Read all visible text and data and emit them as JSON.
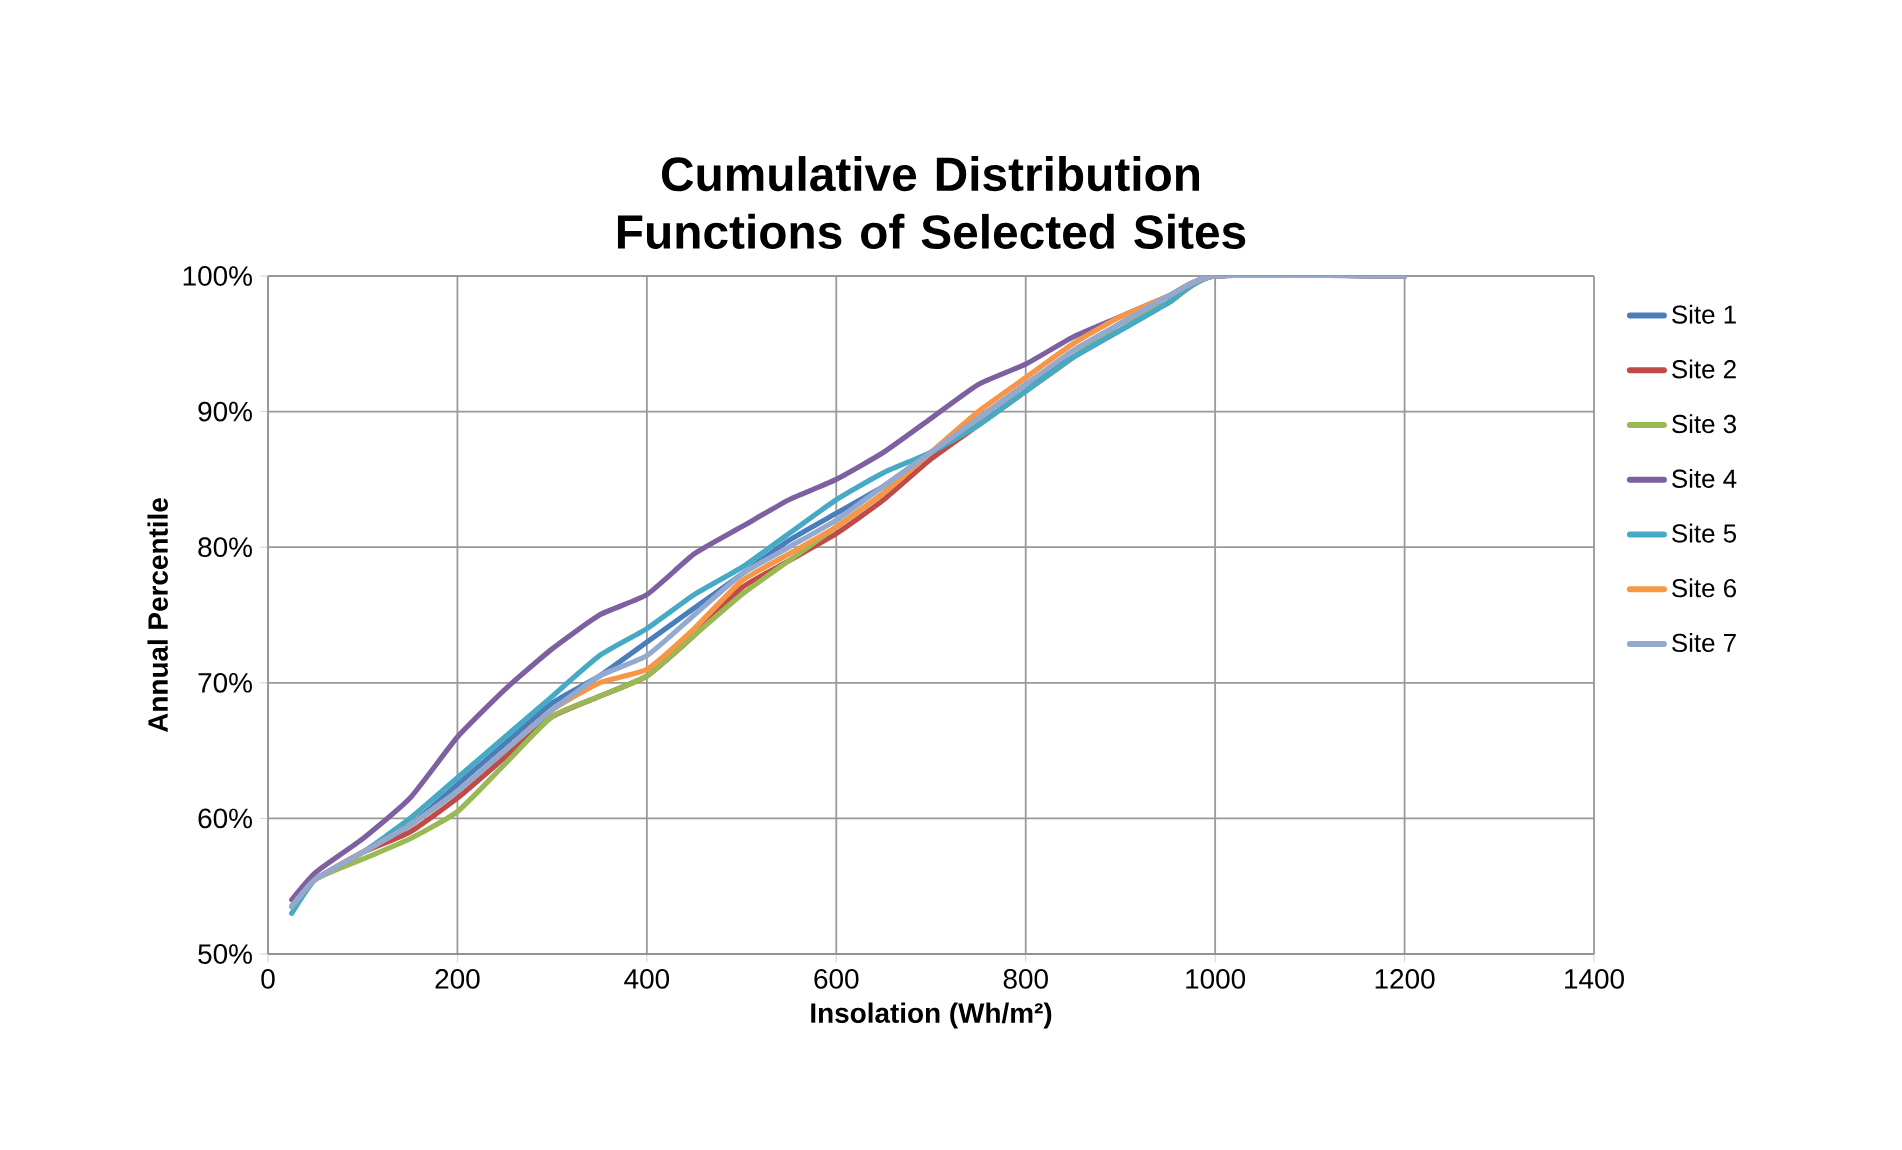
{
  "chart_data": {
    "type": "line",
    "title": "Cumulative Distribution Functions of Selected Sites",
    "xlabel": "Insolation (Wh/m²)",
    "ylabel": "Annual Percentile",
    "x": [
      25,
      50,
      100,
      150,
      200,
      250,
      300,
      350,
      400,
      450,
      500,
      550,
      600,
      650,
      700,
      750,
      800,
      850,
      900,
      950,
      1000,
      1200
    ],
    "series": [
      {
        "name": "Site 1",
        "color": "#4a7ebb",
        "values": [
          53.5,
          55.5,
          57.5,
          59.5,
          62.5,
          65.5,
          68.5,
          70.5,
          73,
          75.5,
          78,
          80.5,
          82.5,
          84.5,
          87,
          89.5,
          92,
          94,
          96,
          98,
          100,
          100
        ]
      },
      {
        "name": "Site 2",
        "color": "#be4b48",
        "values": [
          53.5,
          55.5,
          57.5,
          59,
          61.5,
          64.5,
          67.5,
          69,
          70.5,
          73.5,
          77,
          79,
          81,
          83.5,
          86.5,
          89,
          91.5,
          94,
          96.5,
          98,
          100,
          100
        ]
      },
      {
        "name": "Site 3",
        "color": "#98b954",
        "values": [
          53.5,
          55.5,
          57,
          58.5,
          60.5,
          64,
          67.5,
          69,
          70.5,
          73.5,
          76.5,
          79,
          81.5,
          84,
          87,
          89,
          91.5,
          94,
          96.5,
          98,
          100,
          100
        ]
      },
      {
        "name": "Site 4",
        "color": "#7d60a0",
        "values": [
          54,
          56,
          58.5,
          61.5,
          66,
          69.5,
          72.5,
          75,
          76.5,
          79.5,
          81.5,
          83.5,
          85,
          87,
          89.5,
          92,
          93.5,
          95.5,
          97,
          98.5,
          100,
          100
        ]
      },
      {
        "name": "Site 5",
        "color": "#46aac5",
        "values": [
          53,
          55.5,
          57.5,
          60,
          63,
          66,
          69,
          72,
          74,
          76.5,
          78.5,
          81,
          83.5,
          85.5,
          87,
          89,
          91.5,
          94,
          96,
          98,
          100,
          100
        ]
      },
      {
        "name": "Site 6",
        "color": "#f79646",
        "values": [
          53.5,
          55.5,
          57.5,
          59.5,
          62,
          65,
          68,
          70,
          71,
          74,
          77.5,
          79.5,
          81.5,
          84,
          87,
          90,
          92.5,
          95,
          97,
          98.5,
          100,
          100
        ]
      },
      {
        "name": "Site 7",
        "color": "#93a9cf",
        "values": [
          53.5,
          55.5,
          57.5,
          59.5,
          62,
          65,
          68,
          70.5,
          72,
          75,
          78,
          80,
          82,
          84.5,
          87,
          89.5,
          92,
          94.5,
          96.5,
          98.5,
          100,
          100
        ]
      }
    ],
    "xlim": [
      0,
      1400
    ],
    "xticks": [
      0,
      200,
      400,
      600,
      800,
      1000,
      1200,
      1400
    ],
    "ylim": [
      50,
      100
    ],
    "yticks": [
      {
        "value": 50,
        "label": "50%"
      },
      {
        "value": 60,
        "label": "60%"
      },
      {
        "value": 70,
        "label": "70%"
      },
      {
        "value": 80,
        "label": "80%"
      },
      {
        "value": 90,
        "label": "90%"
      },
      {
        "value": 100,
        "label": "100%"
      }
    ],
    "grid": true,
    "legend": "right"
  }
}
